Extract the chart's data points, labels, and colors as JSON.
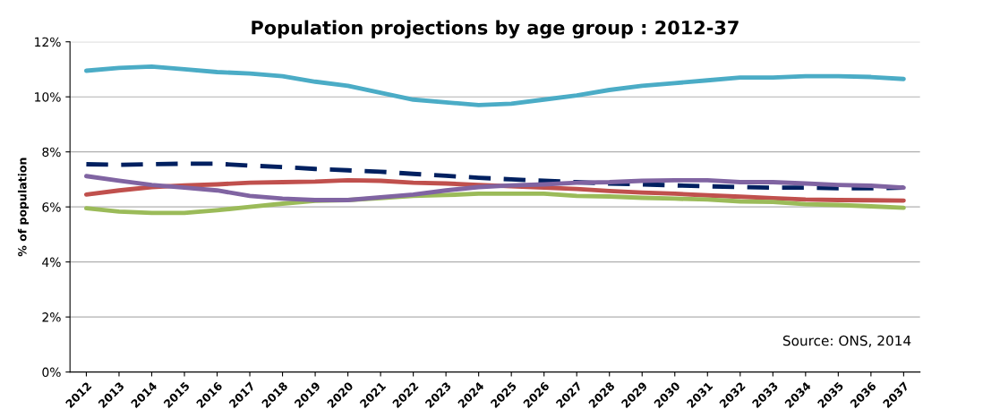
{
  "chart_data": {
    "type": "line",
    "title": "Population projections by age group : 2012-37",
    "ylabel": "% of population",
    "categories": [
      "2012",
      "2013",
      "2014",
      "2015",
      "2016",
      "2017",
      "2018",
      "2019",
      "2020",
      "2021",
      "2022",
      "2023",
      "2024",
      "2025",
      "2026",
      "2027",
      "2028",
      "2029",
      "2030",
      "2031",
      "2032",
      "2033",
      "2034",
      "2035",
      "2036",
      "2037"
    ],
    "series": [
      {
        "color": "#002060",
        "line_style": "dashed",
        "values": [
          7.55,
          7.53,
          7.55,
          7.57,
          7.57,
          7.5,
          7.45,
          7.38,
          7.33,
          7.28,
          7.2,
          7.13,
          7.06,
          7.0,
          6.95,
          6.9,
          6.85,
          6.82,
          6.78,
          6.75,
          6.72,
          6.7,
          6.7,
          6.68,
          6.68,
          6.7
        ]
      },
      {
        "color": "#c0504d",
        "values": [
          6.45,
          6.6,
          6.72,
          6.78,
          6.82,
          6.88,
          6.9,
          6.92,
          6.97,
          6.95,
          6.88,
          6.85,
          6.8,
          6.75,
          6.7,
          6.65,
          6.58,
          6.52,
          6.48,
          6.42,
          6.37,
          6.32,
          6.27,
          6.25,
          6.24,
          6.23
        ]
      },
      {
        "color": "#9bbb59",
        "values": [
          5.95,
          5.83,
          5.78,
          5.78,
          5.88,
          6.0,
          6.12,
          6.22,
          6.25,
          6.32,
          6.4,
          6.43,
          6.48,
          6.48,
          6.48,
          6.4,
          6.38,
          6.33,
          6.3,
          6.27,
          6.2,
          6.18,
          6.1,
          6.07,
          6.02,
          5.97
        ]
      },
      {
        "color": "#8064a2",
        "values": [
          7.12,
          6.95,
          6.8,
          6.7,
          6.6,
          6.4,
          6.3,
          6.25,
          6.25,
          6.35,
          6.45,
          6.6,
          6.72,
          6.78,
          6.82,
          6.88,
          6.9,
          6.95,
          6.97,
          6.97,
          6.9,
          6.9,
          6.85,
          6.8,
          6.77,
          6.7
        ]
      },
      {
        "color": "#4bacc6",
        "values": [
          10.95,
          11.05,
          11.1,
          11.0,
          10.9,
          10.85,
          10.75,
          10.55,
          10.4,
          10.15,
          9.9,
          9.8,
          9.7,
          9.75,
          9.9,
          10.05,
          10.25,
          10.4,
          10.5,
          10.6,
          10.7,
          10.7,
          10.75,
          10.75,
          10.72,
          10.65
        ]
      }
    ],
    "ylim": [
      0,
      12
    ],
    "yticks": [
      {
        "value": 0,
        "label": "0%"
      },
      {
        "value": 2,
        "label": "2%"
      },
      {
        "value": 4,
        "label": "4%"
      },
      {
        "value": 6,
        "label": "6%"
      },
      {
        "value": 8,
        "label": "8%"
      },
      {
        "value": 10,
        "label": "10%"
      },
      {
        "value": 12,
        "label": "12%"
      }
    ],
    "grid": "y",
    "marker": "none",
    "annotations": [
      "Source: ONS, 2014"
    ]
  }
}
